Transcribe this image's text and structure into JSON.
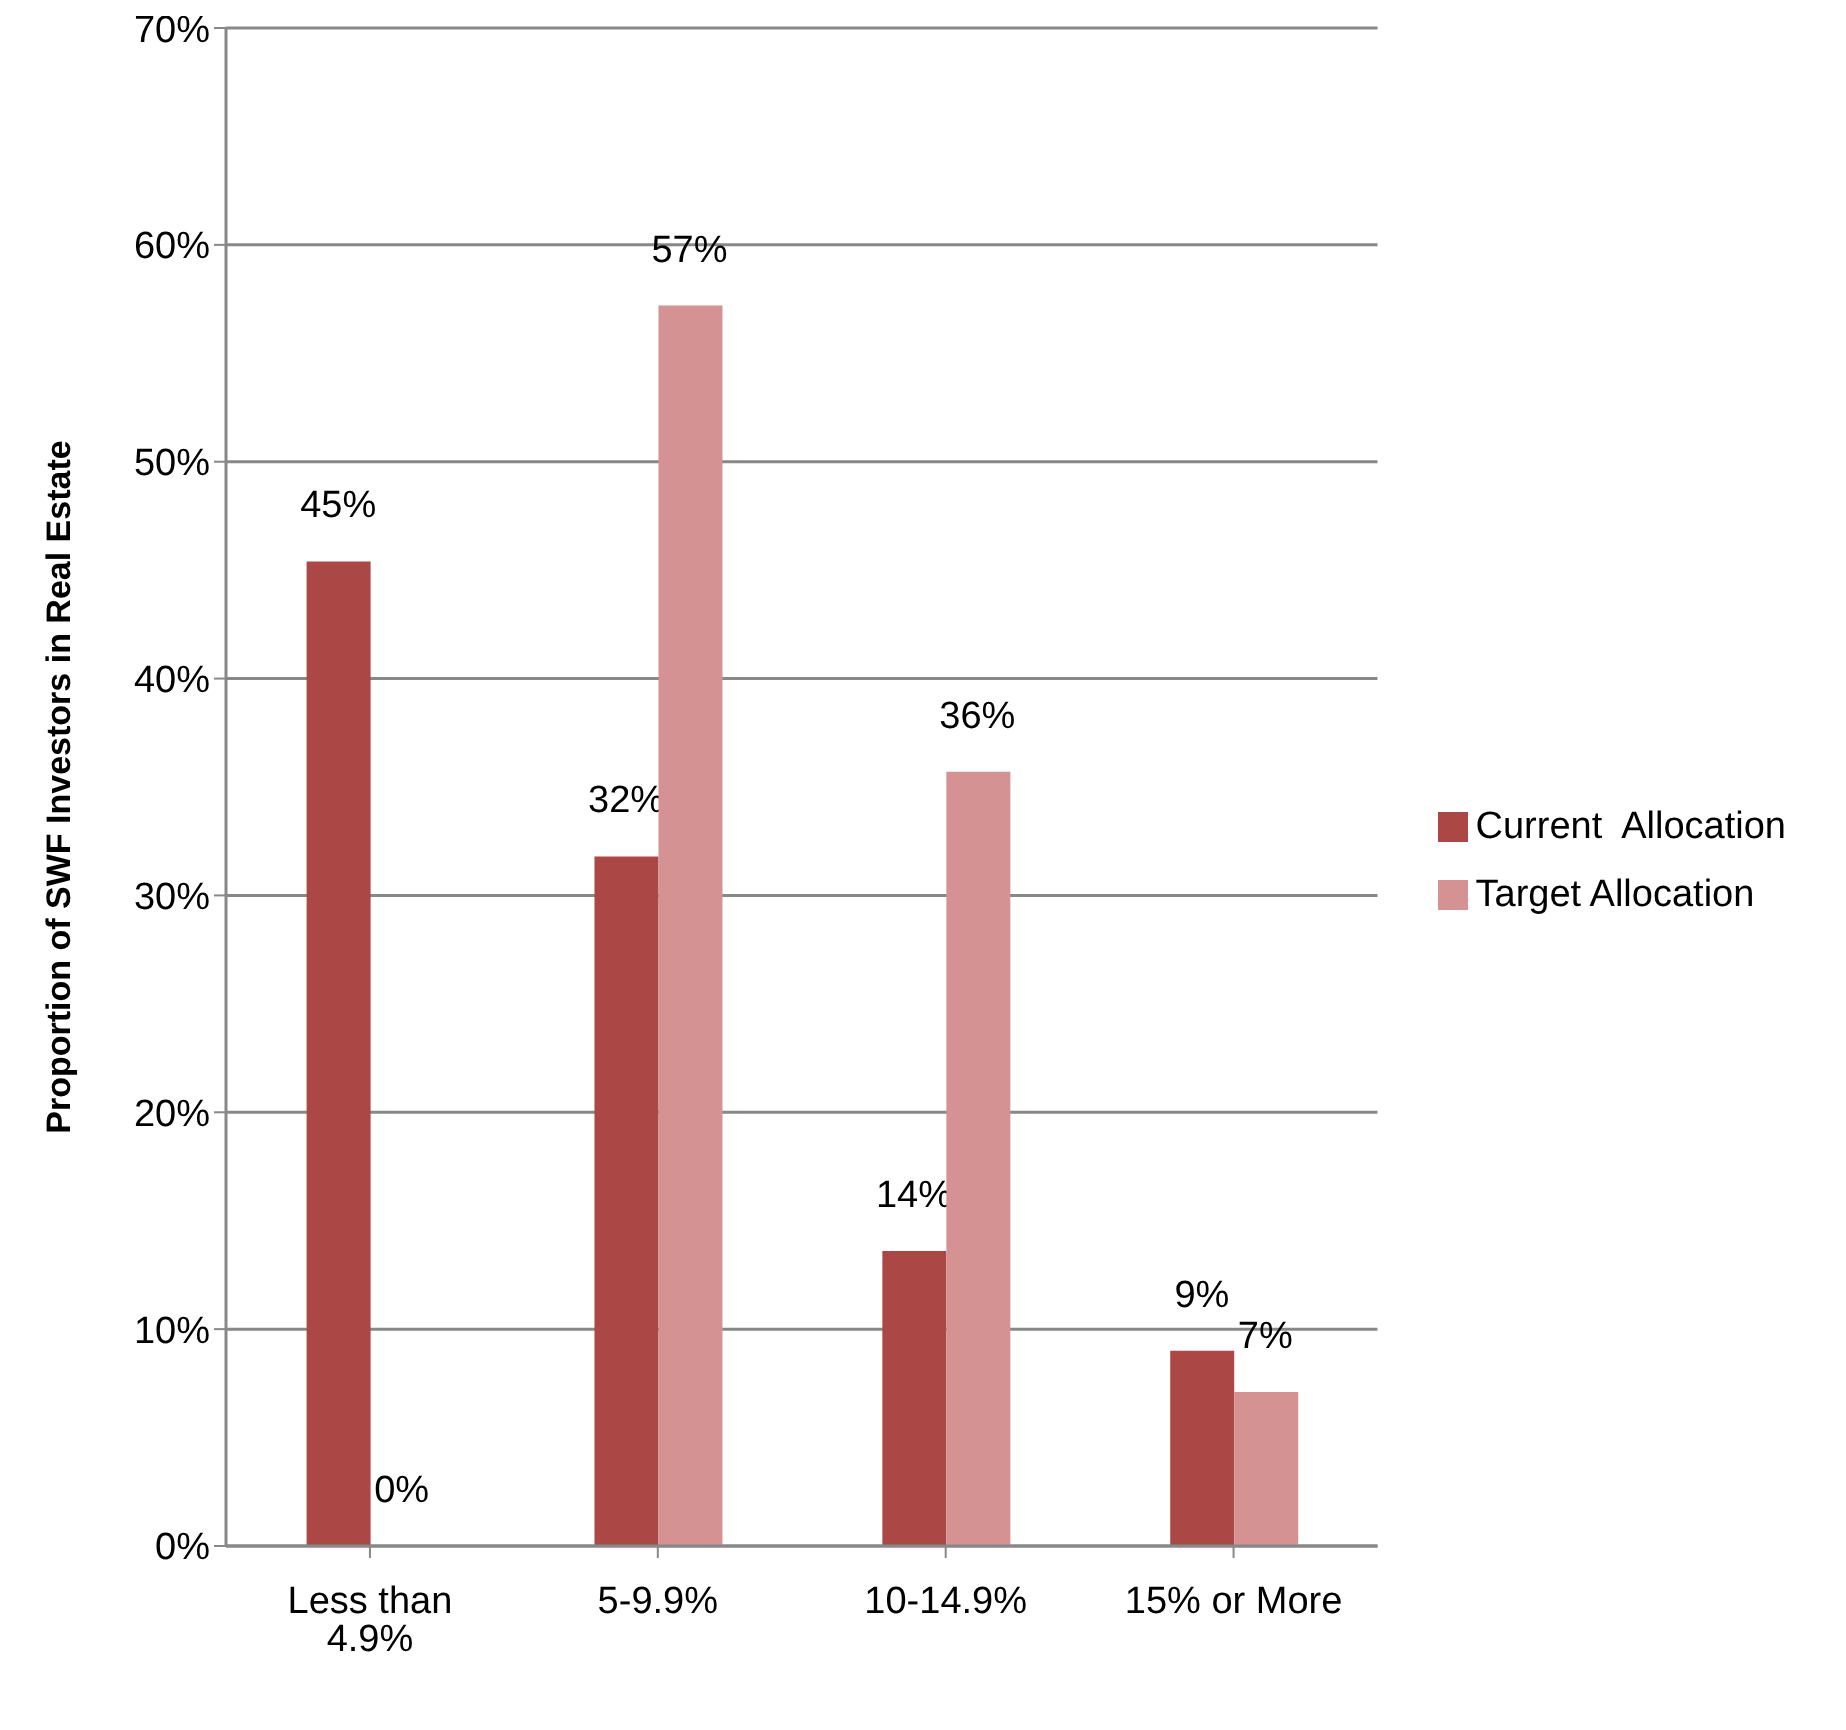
{
  "chart_data": {
    "type": "bar",
    "ylabel": "Proportion of SWF Investors in Real Estate",
    "categories": [
      "Less than 4.9%",
      "5-9.9%",
      "10-14.9%",
      "15% or More"
    ],
    "series": [
      {
        "name": "Current  Allocation",
        "color": "#ab4744",
        "values": [
          45.4,
          31.8,
          13.6,
          9.0
        ],
        "value_labels": [
          "45%",
          "32%",
          "14%",
          "9%"
        ]
      },
      {
        "name": "Target Allocation",
        "color": "#d49292",
        "values": [
          0,
          57.2,
          35.7,
          7.1
        ],
        "value_labels": [
          "0%",
          "57%",
          "36%",
          "7%"
        ]
      }
    ],
    "ylim": [
      0,
      70
    ],
    "yticks": [
      {
        "value": 0,
        "label": "0%"
      },
      {
        "value": 10,
        "label": "10%"
      },
      {
        "value": 20,
        "label": "20%"
      },
      {
        "value": 30,
        "label": "30%"
      },
      {
        "value": 40,
        "label": "40%"
      },
      {
        "value": 50,
        "label": "50%"
      },
      {
        "value": 60,
        "label": "60%"
      },
      {
        "value": 70,
        "label": "70%"
      }
    ],
    "grid": "y",
    "legend": "right"
  }
}
